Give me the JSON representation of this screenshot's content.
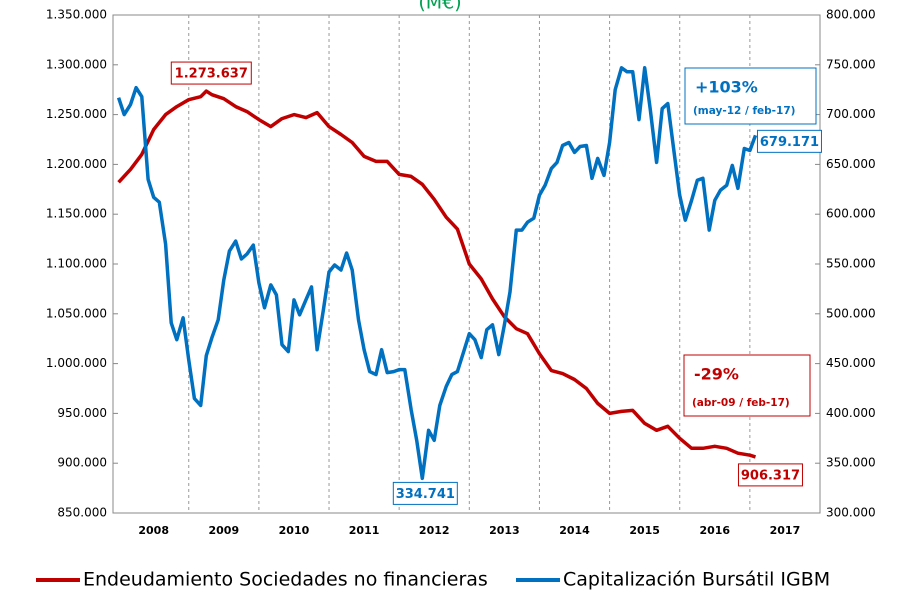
{
  "chart_data": {
    "type": "line",
    "title": "(M€)",
    "title_color": "#00a050",
    "xlim": [
      2007.92,
      2018
    ],
    "ylim": [
      850000,
      1350000
    ],
    "y2lim": [
      300000,
      800000
    ],
    "xticks": [
      {
        "value": 2008.5,
        "label": "2008"
      },
      {
        "value": 2009.5,
        "label": "2009"
      },
      {
        "value": 2010.5,
        "label": "2010"
      },
      {
        "value": 2011.5,
        "label": "2011"
      },
      {
        "value": 2012.5,
        "label": "2012"
      },
      {
        "value": 2013.5,
        "label": "2013"
      },
      {
        "value": 2014.5,
        "label": "2014"
      },
      {
        "value": 2015.5,
        "label": "2015"
      },
      {
        "value": 2016.5,
        "label": "2016"
      },
      {
        "value": 2017.5,
        "label": "2017"
      }
    ],
    "yticks": [
      {
        "value": 850000,
        "label": "850.000"
      },
      {
        "value": 900000,
        "label": "900.000"
      },
      {
        "value": 950000,
        "label": "950.000"
      },
      {
        "value": 1000000,
        "label": "1.000.000"
      },
      {
        "value": 1050000,
        "label": "1.050.000"
      },
      {
        "value": 1100000,
        "label": "1.100.000"
      },
      {
        "value": 1150000,
        "label": "1.150.000"
      },
      {
        "value": 1200000,
        "label": "1.200.000"
      },
      {
        "value": 1250000,
        "label": "1.250.000"
      },
      {
        "value": 1300000,
        "label": "1.300.000"
      },
      {
        "value": 1350000,
        "label": "1.350.000"
      }
    ],
    "y2ticks": [
      {
        "value": 300000,
        "label": "300.000"
      },
      {
        "value": 350000,
        "label": "350.000"
      },
      {
        "value": 400000,
        "label": "400.000"
      },
      {
        "value": 450000,
        "label": "450.000"
      },
      {
        "value": 500000,
        "label": "500.000"
      },
      {
        "value": 550000,
        "label": "550.000"
      },
      {
        "value": 600000,
        "label": "600.000"
      },
      {
        "value": 650000,
        "label": "650.000"
      },
      {
        "value": 700000,
        "label": "700.000"
      },
      {
        "value": 750000,
        "label": "750.000"
      },
      {
        "value": 800000,
        "label": "800.000"
      }
    ],
    "grid": true,
    "legend": "bottom",
    "series": [
      {
        "name": "Endeudamiento Sociedades no financieras",
        "color": "#c00000",
        "axis": "y",
        "x": [
          2008.0,
          2008.17,
          2008.33,
          2008.5,
          2008.67,
          2008.83,
          2009.0,
          2009.17,
          2009.25,
          2009.33,
          2009.5,
          2009.67,
          2009.83,
          2010.0,
          2010.17,
          2010.33,
          2010.5,
          2010.67,
          2010.83,
          2011.0,
          2011.17,
          2011.33,
          2011.5,
          2011.67,
          2011.83,
          2012.0,
          2012.17,
          2012.33,
          2012.5,
          2012.67,
          2012.83,
          2013.0,
          2013.17,
          2013.33,
          2013.5,
          2013.67,
          2013.83,
          2014.0,
          2014.17,
          2014.33,
          2014.5,
          2014.67,
          2014.83,
          2015.0,
          2015.17,
          2015.33,
          2015.5,
          2015.67,
          2015.83,
          2016.0,
          2016.17,
          2016.33,
          2016.5,
          2016.67,
          2016.83,
          2017.0,
          2017.08
        ],
        "values": [
          1182000,
          1195000,
          1210000,
          1235000,
          1250000,
          1258000,
          1265000,
          1268000,
          1273637,
          1270000,
          1266000,
          1258000,
          1253000,
          1245000,
          1238000,
          1246000,
          1250000,
          1247000,
          1252000,
          1238000,
          1230000,
          1222000,
          1208000,
          1203000,
          1203000,
          1190000,
          1188000,
          1180000,
          1165000,
          1147000,
          1135000,
          1100000,
          1085000,
          1065000,
          1047000,
          1035000,
          1030000,
          1010000,
          993000,
          990000,
          984000,
          975000,
          960000,
          950000,
          952000,
          953000,
          940000,
          933000,
          937000,
          925000,
          915000,
          915000,
          917000,
          915000,
          910000,
          908000,
          906317
        ],
        "value_labels": [
          null,
          null,
          null,
          null,
          null,
          null,
          null,
          null,
          "1.273.637",
          null,
          null,
          null,
          null,
          null,
          null,
          null,
          null,
          null,
          null,
          null,
          null,
          null,
          null,
          null,
          null,
          null,
          null,
          null,
          null,
          null,
          null,
          null,
          null,
          null,
          null,
          null,
          null,
          null,
          null,
          null,
          null,
          null,
          null,
          null,
          null,
          null,
          null,
          null,
          null,
          null,
          null,
          null,
          null,
          null,
          null,
          null,
          "906.317"
        ]
      },
      {
        "name": "Capitalización Bursátil IGBM",
        "color": "#0070c0",
        "axis": "y2",
        "x": [
          2008.0,
          2008.08,
          2008.17,
          2008.25,
          2008.33,
          2008.42,
          2008.5,
          2008.58,
          2008.67,
          2008.75,
          2008.83,
          2008.92,
          2009.0,
          2009.08,
          2009.17,
          2009.25,
          2009.33,
          2009.42,
          2009.5,
          2009.58,
          2009.67,
          2009.75,
          2009.83,
          2009.92,
          2010.0,
          2010.08,
          2010.17,
          2010.25,
          2010.33,
          2010.42,
          2010.5,
          2010.58,
          2010.67,
          2010.75,
          2010.83,
          2010.92,
          2011.0,
          2011.08,
          2011.17,
          2011.25,
          2011.33,
          2011.42,
          2011.5,
          2011.58,
          2011.67,
          2011.75,
          2011.83,
          2011.92,
          2012.0,
          2012.08,
          2012.17,
          2012.25,
          2012.33,
          2012.42,
          2012.5,
          2012.58,
          2012.67,
          2012.75,
          2012.83,
          2012.92,
          2013.0,
          2013.08,
          2013.17,
          2013.25,
          2013.33,
          2013.42,
          2013.5,
          2013.58,
          2013.67,
          2013.75,
          2013.83,
          2013.92,
          2014.0,
          2014.08,
          2014.17,
          2014.25,
          2014.33,
          2014.42,
          2014.5,
          2014.58,
          2014.67,
          2014.75,
          2014.83,
          2014.92,
          2015.0,
          2015.08,
          2015.17,
          2015.25,
          2015.33,
          2015.42,
          2015.5,
          2015.58,
          2015.67,
          2015.75,
          2015.83,
          2015.92,
          2016.0,
          2016.08,
          2016.17,
          2016.25,
          2016.33,
          2016.42,
          2016.5,
          2016.58,
          2016.67,
          2016.75,
          2016.83,
          2016.92,
          2017.0,
          2017.08
        ],
        "values": [
          717000,
          700000,
          710000,
          727000,
          718000,
          635000,
          617000,
          612000,
          570000,
          491000,
          474000,
          496000,
          454000,
          415000,
          408000,
          458000,
          476000,
          494000,
          534000,
          563000,
          573000,
          555000,
          560000,
          569000,
          531000,
          506000,
          529000,
          519000,
          469000,
          462000,
          514000,
          499000,
          514000,
          527000,
          464000,
          504000,
          542000,
          549000,
          544000,
          561000,
          544000,
          494000,
          464000,
          442000,
          439000,
          464000,
          441000,
          442000,
          444000,
          444000,
          404000,
          373000,
          334741,
          383000,
          373000,
          408000,
          427000,
          439000,
          442000,
          462000,
          480000,
          474000,
          456000,
          484000,
          489000,
          459000,
          489000,
          522000,
          584000,
          584000,
          592000,
          596000,
          619000,
          629000,
          646000,
          652000,
          669000,
          672000,
          662000,
          668000,
          669000,
          636000,
          656000,
          639000,
          672000,
          725000,
          747000,
          743000,
          743000,
          695000,
          747000,
          705000,
          652000,
          706000,
          711000,
          662000,
          619000,
          594000,
          614000,
          634000,
          636000,
          584000,
          614000,
          624000,
          629000,
          649000,
          626000,
          666000,
          664000,
          679171
        ],
        "value_labels": [
          null,
          null,
          null,
          null,
          null,
          null,
          null,
          null,
          null,
          null,
          null,
          null,
          null,
          null,
          null,
          null,
          null,
          null,
          null,
          null,
          null,
          null,
          null,
          null,
          null,
          null,
          null,
          null,
          null,
          null,
          null,
          null,
          null,
          null,
          null,
          null,
          null,
          null,
          null,
          null,
          null,
          null,
          null,
          null,
          null,
          null,
          null,
          null,
          null,
          null,
          null,
          null,
          "334.741",
          null,
          null,
          null,
          null,
          null,
          null,
          null,
          null,
          null,
          null,
          null,
          null,
          null,
          null,
          null,
          null,
          null,
          null,
          null,
          null,
          null,
          null,
          null,
          null,
          null,
          null,
          null,
          null,
          null,
          null,
          null,
          null,
          null,
          null,
          null,
          null,
          null,
          null,
          null,
          null,
          null,
          null,
          null,
          null,
          null,
          null,
          null,
          null,
          null,
          null,
          null,
          null,
          null,
          null,
          null,
          null,
          "679.171"
        ]
      }
    ],
    "annotations": [
      {
        "text": "+103%",
        "subtext": "(may-12 / feb-17)",
        "color": "#0070c0"
      },
      {
        "text": "-29%",
        "subtext": "(abr-09 / feb-17)",
        "color": "#c00000"
      }
    ]
  }
}
